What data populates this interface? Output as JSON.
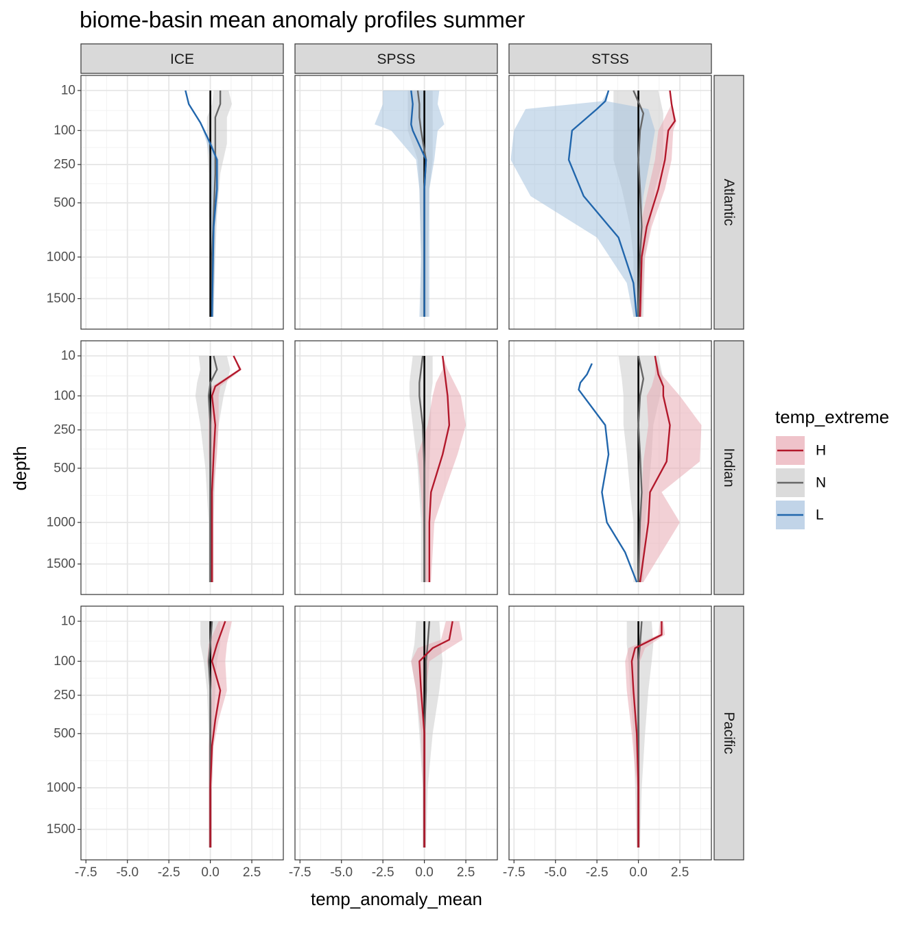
{
  "chart_data": {
    "type": "line",
    "title": "biome-basin mean anomaly profiles summer",
    "xlabel": "temp_anomaly_mean",
    "ylabel": "depth",
    "xlim": [
      -7.8,
      4.4
    ],
    "x_ticks": [
      -7.5,
      -5.0,
      -2.5,
      0.0,
      2.5
    ],
    "x_tick_labels": [
      "-7.5",
      "-5.0",
      "-2.5",
      "0.0",
      "2.5"
    ],
    "y_ticks": [
      10,
      100,
      250,
      500,
      1000,
      1500
    ],
    "y_tick_labels": [
      "10",
      "100",
      "250",
      "500",
      "1000",
      "1500"
    ],
    "y_reversed": true,
    "y_scale": "sqrt",
    "vline_x": 0,
    "grid": true,
    "legend_position": "right",
    "legend_title": "temp_extreme",
    "legend": [
      {
        "key": "H",
        "label": "H",
        "line": "#b2182b",
        "fill": "#e8a9b3"
      },
      {
        "key": "N",
        "label": "N",
        "line": "#666666",
        "fill": "#cccccc"
      },
      {
        "key": "L",
        "label": "L",
        "line": "#2166ac",
        "fill": "#a6c2de"
      }
    ],
    "columns": [
      "ICE",
      "SPSS",
      "STSS"
    ],
    "rows": [
      "Atlantic",
      "Indian",
      "Pacific"
    ],
    "panels": [
      {
        "row": "Atlantic",
        "col": "ICE",
        "series": [
          {
            "key": "N",
            "depth": [
              10,
              30,
              60,
              150,
              300,
              600,
              1000,
              1750
            ],
            "mean": [
              0.6,
              0.6,
              0.3,
              0.3,
              0.3,
              0.2,
              0.1,
              0.1
            ],
            "lo": [
              0.2,
              0.1,
              -0.2,
              -0.2,
              -0.1,
              -0.1,
              0.0,
              0.0
            ],
            "hi": [
              1.1,
              1.3,
              1.0,
              1.0,
              0.6,
              0.4,
              0.3,
              0.2
            ]
          },
          {
            "key": "L",
            "depth": [
              10,
              30,
              75,
              150,
              225,
              400,
              700,
              1750
            ],
            "mean": [
              -1.5,
              -1.3,
              -0.6,
              0.0,
              0.4,
              0.4,
              0.2,
              0.1
            ],
            "lo": [
              -1.5,
              -1.3,
              -0.6,
              -0.2,
              0.0,
              0.0,
              0.0,
              0.0
            ],
            "hi": [
              -1.5,
              -1.3,
              -0.6,
              0.1,
              0.5,
              0.5,
              0.3,
              0.2
            ]
          }
        ]
      },
      {
        "row": "Atlantic",
        "col": "SPSS",
        "series": [
          {
            "key": "N",
            "depth": [
              10,
              30,
              60,
              100,
              225,
              400,
              1000,
              1750
            ],
            "mean": [
              -0.4,
              -0.3,
              -0.3,
              -0.2,
              0.1,
              0.0,
              0.0,
              0.0
            ],
            "lo": [
              -1.0,
              -1.0,
              -1.0,
              -1.0,
              -0.4,
              -0.3,
              -0.2,
              -0.2
            ],
            "hi": [
              0.5,
              0.5,
              0.5,
              0.5,
              0.5,
              0.3,
              0.2,
              0.2
            ]
          },
          {
            "key": "L",
            "depth": [
              10,
              30,
              80,
              100,
              225,
              400,
              1000,
              1750
            ],
            "mean": [
              -0.8,
              -0.7,
              -0.8,
              -0.7,
              0.1,
              0.0,
              0.0,
              0.0
            ],
            "lo": [
              -2.5,
              -2.5,
              -3.0,
              -2.0,
              -0.5,
              -0.3,
              -0.2,
              -0.3
            ],
            "hi": [
              0.9,
              0.8,
              1.2,
              0.8,
              0.6,
              0.3,
              0.3,
              0.3
            ]
          }
        ]
      },
      {
        "row": "Atlantic",
        "col": "STSS",
        "series": [
          {
            "key": "N",
            "depth": [
              10,
              50,
              100,
              225,
              400,
              700,
              1000,
              1750
            ],
            "mean": [
              -0.3,
              0.3,
              0.1,
              0.0,
              0.1,
              0.2,
              0.1,
              0.0
            ],
            "lo": [
              -1.5,
              -1.5,
              -1.5,
              -1.5,
              -1.0,
              -0.5,
              -0.3,
              -0.3
            ],
            "hi": [
              1.2,
              1.5,
              1.5,
              1.5,
              1.0,
              0.7,
              0.4,
              0.3
            ]
          },
          {
            "key": "H",
            "depth": [
              10,
              30,
              70,
              100,
              225,
              400,
              700,
              1000,
              1750
            ],
            "mean": [
              1.9,
              2.0,
              2.2,
              1.8,
              1.6,
              1.2,
              0.5,
              0.2,
              0.1
            ],
            "lo": [
              1.9,
              2.0,
              1.5,
              1.2,
              1.0,
              0.6,
              0.1,
              0.0,
              0.0
            ],
            "hi": [
              1.9,
              2.0,
              2.3,
              2.1,
              2.0,
              1.6,
              0.8,
              0.4,
              0.2
            ]
          },
          {
            "key": "L",
            "depth": [
              10,
              25,
              40,
              100,
              225,
              450,
              800,
              1300,
              1750
            ],
            "mean": [
              -1.8,
              -2.0,
              -2.5,
              -4.0,
              -4.2,
              -3.3,
              -1.2,
              -0.3,
              -0.1
            ],
            "lo": [
              -1.8,
              -2.2,
              -6.8,
              -7.5,
              -7.7,
              -6.5,
              -2.5,
              -0.7,
              -0.3
            ],
            "hi": [
              -1.8,
              -1.9,
              0.6,
              1.0,
              0.7,
              0.3,
              0.1,
              0.0,
              0.0
            ]
          }
        ]
      },
      {
        "row": "Indian",
        "col": "ICE",
        "series": [
          {
            "key": "N",
            "depth": [
              10,
              30,
              60,
              100,
              225,
              500,
              1000,
              1750
            ],
            "mean": [
              0.2,
              0.4,
              0.0,
              -0.1,
              0.0,
              0.0,
              0.0,
              0.0
            ],
            "lo": [
              -0.7,
              -0.6,
              -0.8,
              -0.9,
              -0.6,
              -0.3,
              -0.1,
              -0.1
            ],
            "hi": [
              1.0,
              1.2,
              1.0,
              0.8,
              0.5,
              0.3,
              0.2,
              0.2
            ]
          },
          {
            "key": "H",
            "depth": [
              10,
              30,
              70,
              100,
              225,
              400,
              700,
              1750
            ],
            "mean": [
              1.4,
              1.8,
              0.3,
              0.1,
              0.3,
              0.2,
              0.1,
              0.1
            ],
            "lo": [
              1.4,
              1.7,
              0.1,
              -0.1,
              -0.1,
              -0.1,
              0.0,
              0.0
            ],
            "hi": [
              1.4,
              1.9,
              0.6,
              0.5,
              0.5,
              0.4,
              0.2,
              0.2
            ]
          }
        ]
      },
      {
        "row": "Indian",
        "col": "SPSS",
        "series": [
          {
            "key": "N",
            "depth": [
              10,
              30,
              60,
              100,
              225,
              500,
              1000,
              1750
            ],
            "mean": [
              -0.1,
              -0.2,
              -0.3,
              -0.3,
              -0.1,
              0.0,
              0.0,
              0.0
            ],
            "lo": [
              -0.7,
              -0.8,
              -0.9,
              -0.9,
              -0.7,
              -0.4,
              -0.2,
              -0.2
            ],
            "hi": [
              0.5,
              0.5,
              0.5,
              0.4,
              0.4,
              0.3,
              0.2,
              0.2
            ]
          },
          {
            "key": "H",
            "depth": [
              10,
              30,
              60,
              100,
              225,
              400,
              700,
              1000,
              1750
            ],
            "mean": [
              1.1,
              1.2,
              1.3,
              1.4,
              1.5,
              1.1,
              0.4,
              0.3,
              0.3
            ],
            "lo": [
              1.1,
              1.1,
              0.7,
              0.5,
              0.2,
              -0.4,
              -0.2,
              -0.1,
              0.0
            ],
            "hi": [
              1.1,
              1.4,
              1.8,
              2.2,
              2.5,
              2.0,
              1.2,
              0.6,
              0.4
            ]
          }
        ]
      },
      {
        "row": "Indian",
        "col": "STSS",
        "series": [
          {
            "key": "N",
            "depth": [
              10,
              50,
              100,
              225,
              400,
              700,
              1000,
              1750
            ],
            "mean": [
              0.0,
              0.3,
              0.1,
              0.0,
              0.1,
              0.2,
              0.1,
              0.0
            ],
            "lo": [
              -1.2,
              -1.0,
              -0.9,
              -0.9,
              -0.7,
              -0.5,
              -0.3,
              -0.3
            ],
            "hi": [
              1.2,
              1.5,
              1.3,
              0.9,
              0.8,
              0.6,
              0.4,
              0.3
            ]
          },
          {
            "key": "H",
            "depth": [
              10,
              40,
              70,
              100,
              225,
              450,
              700,
              1000,
              1750
            ],
            "mean": [
              1.0,
              1.2,
              1.5,
              1.5,
              1.9,
              1.7,
              0.7,
              0.6,
              0.1
            ],
            "lo": [
              1.0,
              1.0,
              0.8,
              0.5,
              0.6,
              0.3,
              0.2,
              0.1,
              0.0
            ],
            "hi": [
              1.0,
              1.4,
              2.0,
              2.5,
              3.8,
              3.7,
              1.4,
              2.5,
              0.3
            ]
          },
          {
            "key": "L",
            "depth": [
              20,
              40,
              60,
              80,
              225,
              400,
              700,
              1000,
              1350,
              1750
            ],
            "mean": [
              -2.8,
              -3.1,
              -3.5,
              -3.6,
              -2.0,
              -1.8,
              -2.2,
              -1.9,
              -0.8,
              -0.1
            ],
            "lo": [
              -2.8,
              -3.1,
              -3.5,
              -3.6,
              -2.0,
              -1.8,
              -2.2,
              -1.9,
              -0.8,
              -0.1
            ],
            "hi": [
              -2.8,
              -3.1,
              -3.5,
              -3.6,
              -2.0,
              -1.8,
              -2.2,
              -1.9,
              -0.8,
              -0.1
            ]
          }
        ]
      },
      {
        "row": "Pacific",
        "col": "ICE",
        "series": [
          {
            "key": "N",
            "depth": [
              10,
              50,
              100,
              225,
              500,
              1000,
              1750
            ],
            "mean": [
              0.1,
              0.0,
              -0.1,
              0.0,
              0.0,
              0.0,
              0.0
            ],
            "lo": [
              -0.6,
              -0.6,
              -0.4,
              -0.2,
              -0.1,
              -0.1,
              -0.1
            ],
            "hi": [
              0.6,
              0.6,
              0.4,
              0.3,
              0.2,
              0.1,
              0.1
            ]
          },
          {
            "key": "H",
            "depth": [
              10,
              50,
              100,
              225,
              400,
              600,
              1000,
              1750
            ],
            "mean": [
              0.9,
              0.4,
              0.1,
              0.6,
              0.3,
              0.1,
              0.0,
              0.0
            ],
            "lo": [
              0.5,
              -0.1,
              -0.2,
              0.1,
              0.0,
              -0.1,
              -0.1,
              -0.1
            ],
            "hi": [
              1.3,
              1.0,
              0.9,
              1.0,
              0.5,
              0.2,
              0.1,
              0.1
            ]
          }
        ]
      },
      {
        "row": "Pacific",
        "col": "SPSS",
        "series": [
          {
            "key": "N",
            "depth": [
              10,
              50,
              100,
              225,
              500,
              1000,
              1750
            ],
            "mean": [
              0.3,
              0.2,
              0.1,
              0.1,
              0.0,
              0.0,
              0.0
            ],
            "lo": [
              -0.5,
              -0.6,
              -0.8,
              -0.5,
              -0.3,
              -0.1,
              -0.1
            ],
            "hi": [
              0.9,
              1.0,
              1.1,
              0.9,
              0.5,
              0.2,
              0.1
            ]
          },
          {
            "key": "H",
            "depth": [
              10,
              40,
              60,
              100,
              225,
              500,
              1000,
              1750
            ],
            "mean": [
              1.7,
              1.5,
              0.5,
              -0.3,
              -0.2,
              0.0,
              0.0,
              0.0
            ],
            "lo": [
              1.3,
              1.0,
              -0.4,
              -0.8,
              -0.5,
              -0.2,
              -0.1,
              -0.1
            ],
            "hi": [
              2.1,
              2.3,
              1.5,
              0.3,
              0.1,
              0.1,
              0.1,
              0.1
            ]
          }
        ]
      },
      {
        "row": "Pacific",
        "col": "STSS",
        "series": [
          {
            "key": "N",
            "depth": [
              10,
              50,
              100,
              225,
              500,
              1000,
              1750
            ],
            "mean": [
              0.2,
              0.1,
              0.0,
              0.0,
              0.0,
              0.0,
              0.0
            ],
            "lo": [
              -0.7,
              -0.7,
              -0.6,
              -0.5,
              -0.3,
              -0.2,
              -0.1
            ],
            "hi": [
              0.8,
              0.9,
              0.8,
              0.6,
              0.4,
              0.2,
              0.1
            ]
          },
          {
            "key": "H",
            "depth": [
              10,
              30,
              60,
              100,
              225,
              500,
              1000,
              1750
            ],
            "mean": [
              1.4,
              1.4,
              -0.2,
              -0.4,
              -0.3,
              -0.1,
              0.0,
              0.0
            ],
            "lo": [
              1.3,
              1.2,
              -0.6,
              -0.8,
              -0.7,
              -0.4,
              -0.1,
              -0.1
            ],
            "hi": [
              1.5,
              1.6,
              0.4,
              0.1,
              0.0,
              0.1,
              0.1,
              0.1
            ]
          }
        ]
      }
    ]
  }
}
